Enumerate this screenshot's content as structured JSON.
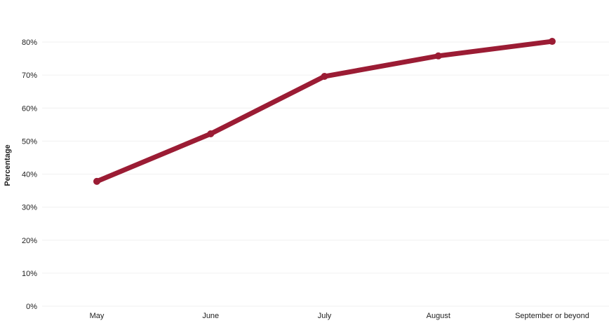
{
  "chart_data": {
    "type": "line",
    "title": "",
    "xlabel": "",
    "ylabel": "Percentage",
    "categories": [
      "May",
      "June",
      "July",
      "August",
      "September or beyond"
    ],
    "series": [
      {
        "values": [
          37.8,
          52.2,
          69.6,
          75.8,
          80.2
        ]
      }
    ],
    "ylim": [
      0,
      80
    ],
    "y_ticks": [
      0,
      10,
      20,
      30,
      40,
      50,
      60,
      70,
      80
    ],
    "y_tick_labels": [
      "0%",
      "10%",
      "20%",
      "30%",
      "40%",
      "50%",
      "60%",
      "70%",
      "80%"
    ],
    "grid": true,
    "legend": "none",
    "colors": {
      "line": "#9b1c34"
    }
  }
}
